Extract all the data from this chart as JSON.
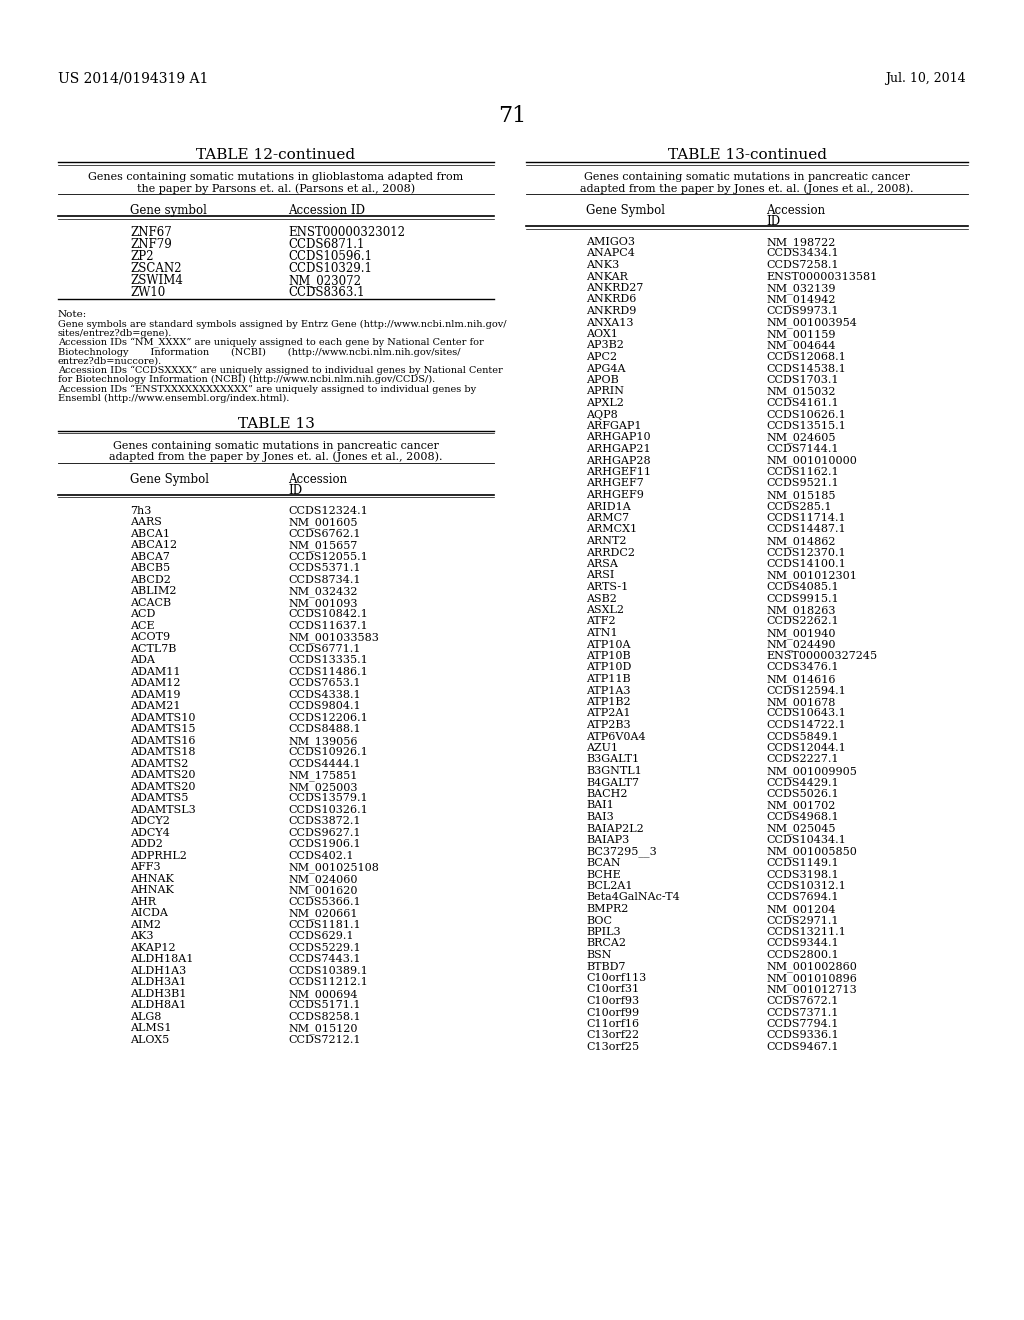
{
  "header_left": "US 2014/0194319 A1",
  "header_right": "Jul. 10, 2014",
  "page_number": "71",
  "table12_data": [
    [
      "ZNF67",
      "ENST00000323012"
    ],
    [
      "ZNF79",
      "CCDS6871.1"
    ],
    [
      "ZP2",
      "CCDS10596.1"
    ],
    [
      "ZSCAN2",
      "CCDS10329.1"
    ],
    [
      "ZSWIM4",
      "NM_023072"
    ],
    [
      "ZW10",
      "CCDS8363.1"
    ]
  ],
  "table13_data_left": [
    [
      "7h3",
      "CCDS12324.1"
    ],
    [
      "AARS",
      "NM_001605"
    ],
    [
      "ABCA1",
      "CCDS6762.1"
    ],
    [
      "ABCA12",
      "NM_015657"
    ],
    [
      "ABCA7",
      "CCDS12055.1"
    ],
    [
      "ABCB5",
      "CCDS5371.1"
    ],
    [
      "ABCD2",
      "CCDS8734.1"
    ],
    [
      "ABLIM2",
      "NM_032432"
    ],
    [
      "ACACB",
      "NM_001093"
    ],
    [
      "ACD",
      "CCDS10842.1"
    ],
    [
      "ACE",
      "CCDS11637.1"
    ],
    [
      "ACOT9",
      "NM_001033583"
    ],
    [
      "ACTL7B",
      "CCDS6771.1"
    ],
    [
      "ADA",
      "CCDS13335.1"
    ],
    [
      "ADAM11",
      "CCDS11486.1"
    ],
    [
      "ADAM12",
      "CCDS7653.1"
    ],
    [
      "ADAM19",
      "CCDS4338.1"
    ],
    [
      "ADAM21",
      "CCDS9804.1"
    ],
    [
      "ADAMTS10",
      "CCDS12206.1"
    ],
    [
      "ADAMTS15",
      "CCDS8488.1"
    ],
    [
      "ADAMTS16",
      "NM_139056"
    ],
    [
      "ADAMTS18",
      "CCDS10926.1"
    ],
    [
      "ADAMTS2",
      "CCDS4444.1"
    ],
    [
      "ADAMTS20",
      "NM_175851"
    ],
    [
      "ADAMTS20",
      "NM_025003"
    ],
    [
      "ADAMTS5",
      "CCDS13579.1"
    ],
    [
      "ADAMTSL3",
      "CCDS10326.1"
    ],
    [
      "ADCY2",
      "CCDS3872.1"
    ],
    [
      "ADCY4",
      "CCDS9627.1"
    ],
    [
      "ADD2",
      "CCDS1906.1"
    ],
    [
      "ADPRHL2",
      "CCDS402.1"
    ],
    [
      "AFF3",
      "NM_001025108"
    ],
    [
      "AHNAK",
      "NM_024060"
    ],
    [
      "AHNAK",
      "NM_001620"
    ],
    [
      "AHR",
      "CCDS5366.1"
    ],
    [
      "AICDA",
      "NM_020661"
    ],
    [
      "AIM2",
      "CCDS1181.1"
    ],
    [
      "AK3",
      "CCDS629.1"
    ],
    [
      "AKAP12",
      "CCDS5229.1"
    ],
    [
      "ALDH18A1",
      "CCDS7443.1"
    ],
    [
      "ALDH1A3",
      "CCDS10389.1"
    ],
    [
      "ALDH3A1",
      "CCDS11212.1"
    ],
    [
      "ALDH3B1",
      "NM_000694"
    ],
    [
      "ALDH8A1",
      "CCDS5171.1"
    ],
    [
      "ALG8",
      "CCDS8258.1"
    ],
    [
      "ALMS1",
      "NM_015120"
    ],
    [
      "ALOX5",
      "CCDS7212.1"
    ]
  ],
  "table13_data_right": [
    [
      "AMIGO3",
      "NM_198722"
    ],
    [
      "ANAPC4",
      "CCDS3434.1"
    ],
    [
      "ANK3",
      "CCDS7258.1"
    ],
    [
      "ANKAR",
      "ENST00000313581"
    ],
    [
      "ANKRD27",
      "NM_032139"
    ],
    [
      "ANKRD6",
      "NM_014942"
    ],
    [
      "ANKRD9",
      "CCDS9973.1"
    ],
    [
      "ANXA13",
      "NM_001003954"
    ],
    [
      "AOX1",
      "NM_001159"
    ],
    [
      "AP3B2",
      "NM_004644"
    ],
    [
      "APC2",
      "CCDS12068.1"
    ],
    [
      "APG4A",
      "CCDS14538.1"
    ],
    [
      "APOB",
      "CCDS1703.1"
    ],
    [
      "APRIN",
      "NM_015032"
    ],
    [
      "APXL2",
      "CCDS4161.1"
    ],
    [
      "AQP8",
      "CCDS10626.1"
    ],
    [
      "ARFGAP1",
      "CCDS13515.1"
    ],
    [
      "ARHGAP10",
      "NM_024605"
    ],
    [
      "ARHGAP21",
      "CCDS7144.1"
    ],
    [
      "ARHGAP28",
      "NM_001010000"
    ],
    [
      "ARHGEF11",
      "CCDS1162.1"
    ],
    [
      "ARHGEF7",
      "CCDS9521.1"
    ],
    [
      "ARHGEF9",
      "NM_015185"
    ],
    [
      "ARID1A",
      "CCDS285.1"
    ],
    [
      "ARMC7",
      "CCDS11714.1"
    ],
    [
      "ARMCX1",
      "CCDS14487.1"
    ],
    [
      "ARNT2",
      "NM_014862"
    ],
    [
      "ARRDC2",
      "CCDS12370.1"
    ],
    [
      "ARSA",
      "CCDS14100.1"
    ],
    [
      "ARSI",
      "NM_001012301"
    ],
    [
      "ARTS-1",
      "CCDS4085.1"
    ],
    [
      "ASB2",
      "CCDS9915.1"
    ],
    [
      "ASXL2",
      "NM_018263"
    ],
    [
      "ATF2",
      "CCDS2262.1"
    ],
    [
      "ATN1",
      "NM_001940"
    ],
    [
      "ATP10A",
      "NM_024490"
    ],
    [
      "ATP10B",
      "ENST00000327245"
    ],
    [
      "ATP10D",
      "CCDS3476.1"
    ],
    [
      "ATP11B",
      "NM_014616"
    ],
    [
      "ATP1A3",
      "CCDS12594.1"
    ],
    [
      "ATP1B2",
      "NM_001678"
    ],
    [
      "ATP2A1",
      "CCDS10643.1"
    ],
    [
      "ATP2B3",
      "CCDS14722.1"
    ],
    [
      "ATP6V0A4",
      "CCDS5849.1"
    ],
    [
      "AZU1",
      "CCDS12044.1"
    ],
    [
      "B3GALT1",
      "CCDS2227.1"
    ],
    [
      "B3GNTL1",
      "NM_001009905"
    ],
    [
      "B4GALT7",
      "CCDS4429.1"
    ],
    [
      "BACH2",
      "CCDS5026.1"
    ],
    [
      "BAI1",
      "NM_001702"
    ],
    [
      "BAI3",
      "CCDS4968.1"
    ],
    [
      "BAIAP2L2",
      "NM_025045"
    ],
    [
      "BAIAP3",
      "CCDS10434.1"
    ],
    [
      "BC37295__3",
      "NM_001005850"
    ],
    [
      "BCAN",
      "CCDS1149.1"
    ],
    [
      "BCHE",
      "CCDS3198.1"
    ],
    [
      "BCL2A1",
      "CCDS10312.1"
    ],
    [
      "Beta4GalNAc-T4",
      "CCDS7694.1"
    ],
    [
      "BMPR2",
      "NM_001204"
    ],
    [
      "BOC",
      "CCDS2971.1"
    ],
    [
      "BPIL3",
      "CCDS13211.1"
    ],
    [
      "BRCA2",
      "CCDS9344.1"
    ],
    [
      "BSN",
      "CCDS2800.1"
    ],
    [
      "BTBD7",
      "NM_001002860"
    ],
    [
      "C10orf113",
      "NM_001010896"
    ],
    [
      "C10orf31",
      "NM_001012713"
    ],
    [
      "C10orf93",
      "CCDS7672.1"
    ],
    [
      "C10orf99",
      "CCDS7371.1"
    ],
    [
      "C11orf16",
      "CCDS7794.1"
    ],
    [
      "C13orf22",
      "CCDS9336.1"
    ],
    [
      "C13orf25",
      "CCDS9467.1"
    ]
  ],
  "note_lines": [
    "Gene symbols are standard symbols assigned by Entrz Gene (http://www.ncbi.nlm.nih.gov/",
    "sites/entrez?db=gene).",
    "Accession IDs “NM_XXXX” are uniquely assigned to each gene by National Center for",
    "Biotechnology       Information       (NCBI)       (http://www.ncbi.nlm.nih.gov/sites/",
    "entrez?db=nuccore).",
    "Accession IDs “CCDSXXXX” are uniquely assigned to individual genes by National Center",
    "for Biotechnology Information (NCBI) (http://www.ncbi.nlm.nih.gov/CCDS/).",
    "Accession IDs “ENSTXXXXXXXXXXXX” are uniquely assigned to individual genes by",
    "Ensembl (http://www.ensembl.org/index.html)."
  ]
}
